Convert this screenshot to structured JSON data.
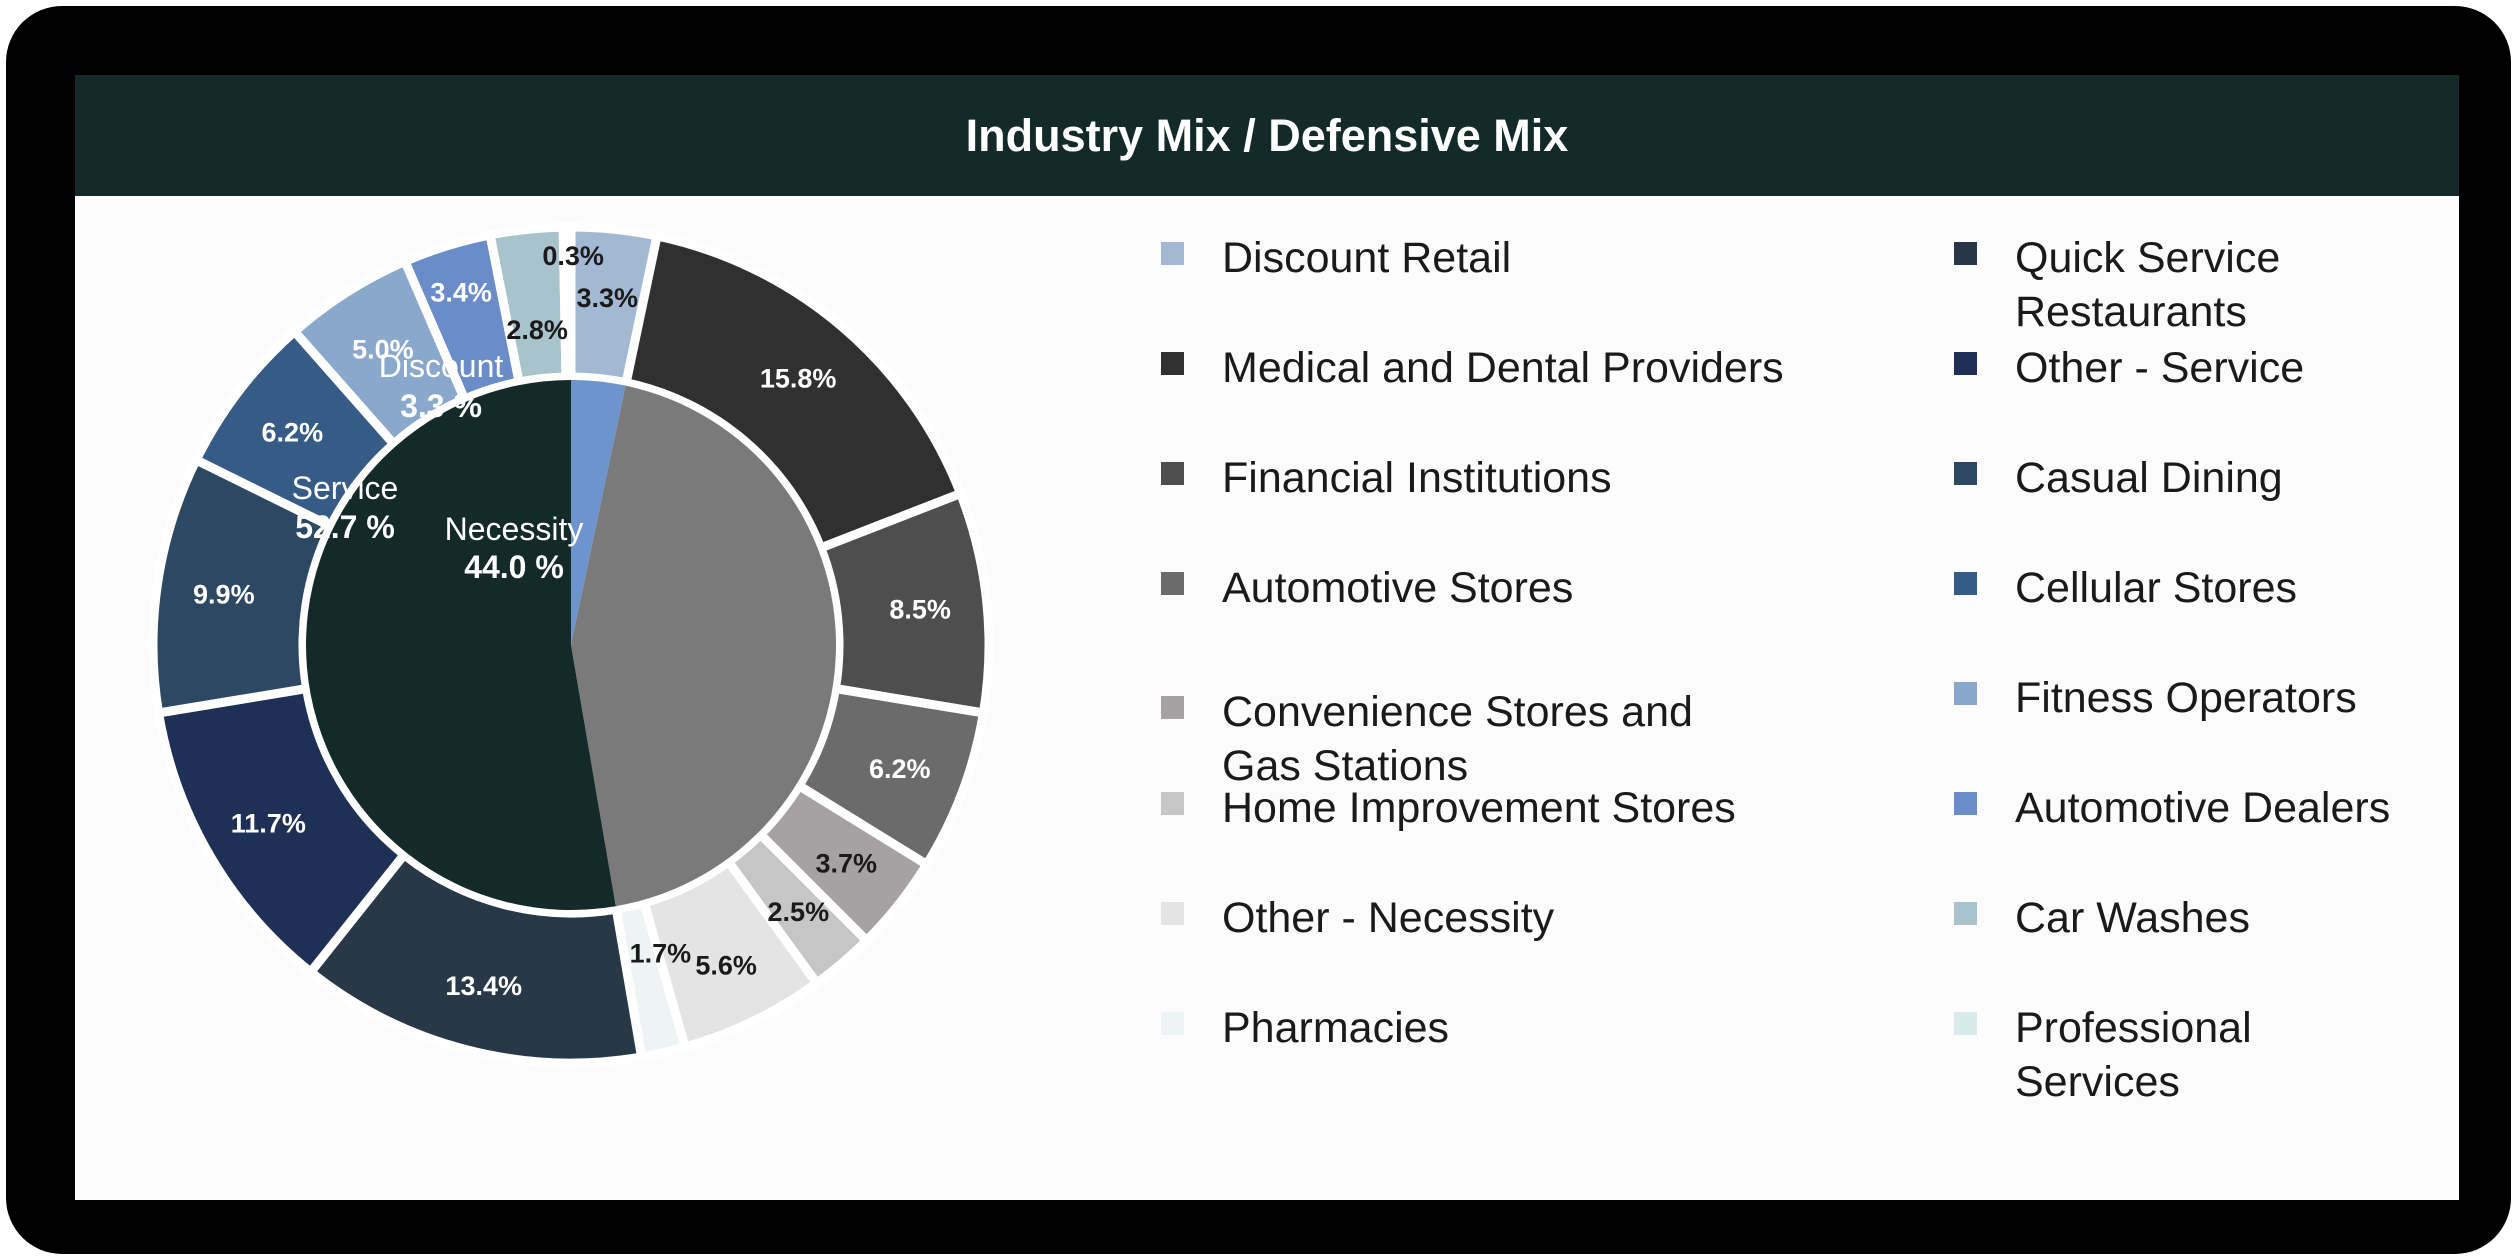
{
  "header": {
    "title": "Industry Mix / Defensive Mix"
  },
  "chart_data": {
    "type": "pie",
    "title": "Industry Mix / Defensive Mix",
    "inner_ring": [
      {
        "name": "Discount",
        "value": 3.3,
        "label": "3.3 %",
        "color": "#6d94cc"
      },
      {
        "name": "Necessity",
        "value": 44.0,
        "label": "44.0 %",
        "color": "#7a7a7a"
      },
      {
        "name": "Service",
        "value": 52.7,
        "label": "52.7 %",
        "color": "#132a28"
      }
    ],
    "outer_ring": [
      {
        "name": "Discount Retail",
        "value": 3.3,
        "label": "3.3%",
        "color": "#a3b9d3"
      },
      {
        "name": "Medical and Dental Providers",
        "value": 15.8,
        "label": "15.8%",
        "color": "#303030"
      },
      {
        "name": "Financial Institutions",
        "value": 8.5,
        "label": "8.5%",
        "color": "#4e4e4e"
      },
      {
        "name": "Automotive Stores",
        "value": 6.2,
        "label": "6.2%",
        "color": "#6b6b6b"
      },
      {
        "name": "Convenience Stores and\n Gas Stations",
        "value": 3.7,
        "label": "3.7%",
        "color": "#a6a2a3"
      },
      {
        "name": "Home Improvement Stores",
        "value": 2.5,
        "label": "2.5%",
        "color": "#c6c6c6"
      },
      {
        "name": "Other - Necessity",
        "value": 5.6,
        "label": "5.6%",
        "color": "#e4e4e4"
      },
      {
        "name": "Pharmacies",
        "value": 1.7,
        "label": "1.7%",
        "color": "#eef4f4"
      },
      {
        "name": "Quick Service\nRestaurants",
        "value": 13.4,
        "label": "13.4%",
        "color": "#283847"
      },
      {
        "name": "Other - Service",
        "value": 11.7,
        "label": "11.7%",
        "color": "#1f3056"
      },
      {
        "name": "Casual Dining",
        "value": 9.9,
        "label": "9.9%",
        "color": "#2c4862"
      },
      {
        "name": "Cellular Stores",
        "value": 6.2,
        "label": "6.2%",
        "color": "#355b86"
      },
      {
        "name": "Fitness Operators",
        "value": 5.0,
        "label": "5.0%",
        "color": "#8aa8cc"
      },
      {
        "name": "Automotive Dealers",
        "value": 3.4,
        "label": "3.4%",
        "color": "#6a8cc8"
      },
      {
        "name": "Car Washes",
        "value": 2.8,
        "label": "2.8%",
        "color": "#a9c3cc"
      },
      {
        "name": "Professional\nServices",
        "value": 0.3,
        "label": "0.3%",
        "color": "#d9eaec"
      }
    ],
    "legend": {
      "placement": "right",
      "columns": [
        [
          "Discount Retail",
          "Medical and Dental Providers",
          "Financial Institutions",
          "Automotive Stores",
          "Convenience Stores and\n Gas Stations",
          "Home Improvement Stores",
          "Other - Necessity",
          "Pharmacies"
        ],
        [
          "Quick Service\nRestaurants",
          "Other - Service",
          "Casual Dining",
          "Cellular Stores",
          "Fitness Operators",
          "Automotive Dealers",
          "Car Washes",
          "Professional\nServices"
        ]
      ]
    }
  }
}
